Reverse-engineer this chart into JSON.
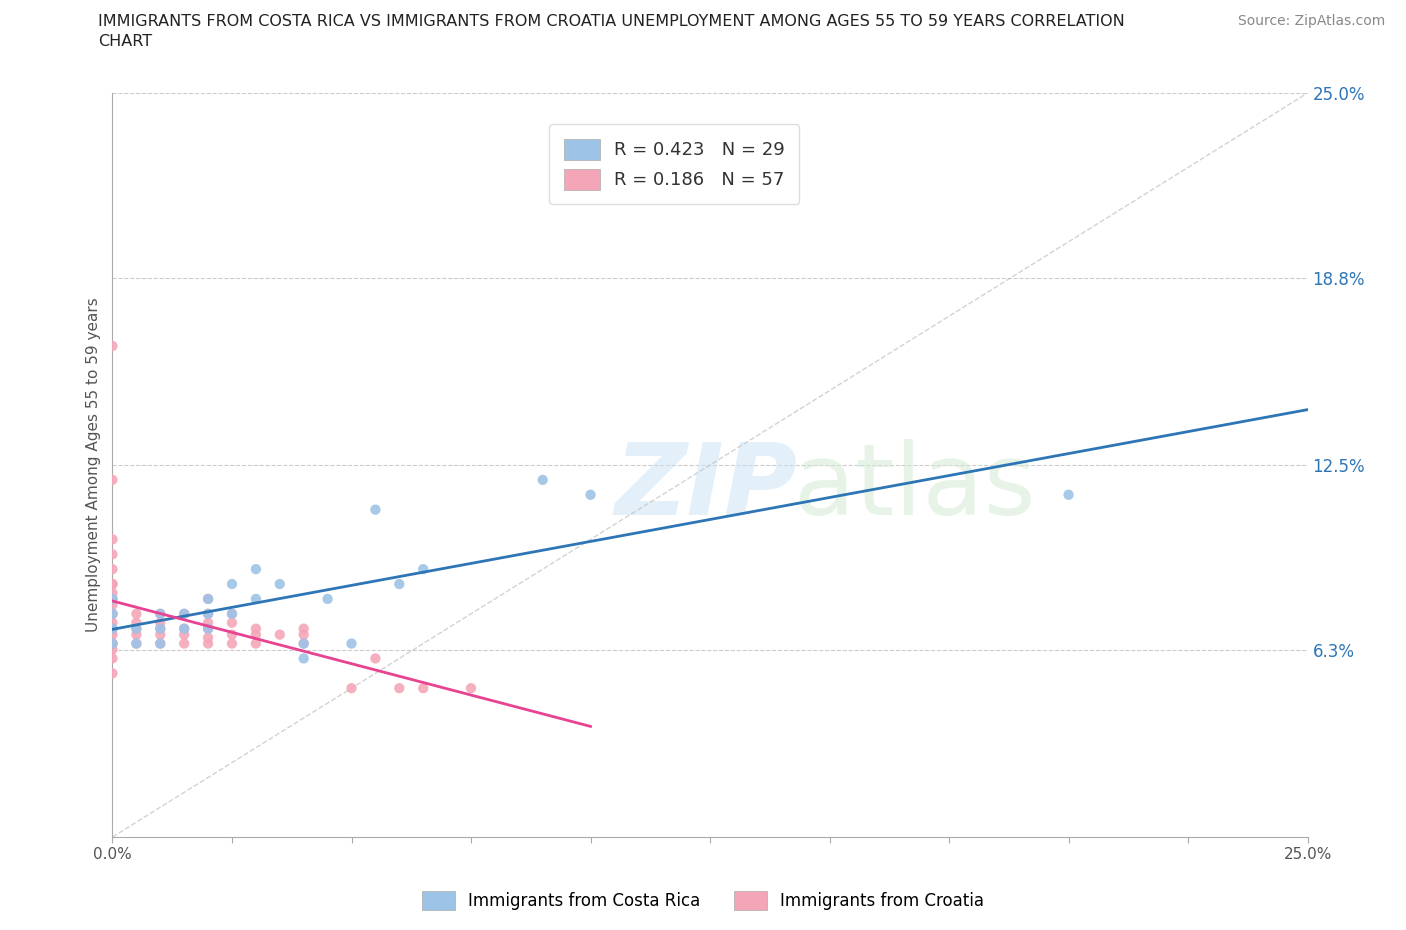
{
  "title_line1": "IMMIGRANTS FROM COSTA RICA VS IMMIGRANTS FROM CROATIA UNEMPLOYMENT AMONG AGES 55 TO 59 YEARS CORRELATION",
  "title_line2": "CHART",
  "source": "Source: ZipAtlas.com",
  "ylabel": "Unemployment Among Ages 55 to 59 years",
  "xlim": [
    0,
    0.25
  ],
  "ylim": [
    0,
    0.25
  ],
  "ytick_right_labels": [
    "6.3%",
    "12.5%",
    "18.8%",
    "25.0%"
  ],
  "ytick_right_values": [
    0.063,
    0.125,
    0.188,
    0.25
  ],
  "color_costa_rica": "#9dc3e6",
  "color_croatia": "#f4a6b8",
  "color_trendline_costa_rica": "#2e75b6",
  "color_trendline_croatia": "#e84393",
  "color_diagonal": "#c0c0c0",
  "R_costa_rica": 0.423,
  "N_costa_rica": 29,
  "R_croatia": 0.186,
  "N_croatia": 57,
  "legend_label_costa_rica": "Immigrants from Costa Rica",
  "legend_label_croatia": "Immigrants from Croatia",
  "costa_rica_x": [
    0.0,
    0.0,
    0.0,
    0.0,
    0.005,
    0.005,
    0.01,
    0.01,
    0.01,
    0.015,
    0.015,
    0.02,
    0.02,
    0.02,
    0.025,
    0.025,
    0.03,
    0.03,
    0.035,
    0.04,
    0.04,
    0.045,
    0.05,
    0.055,
    0.06,
    0.065,
    0.09,
    0.1,
    0.2
  ],
  "costa_rica_y": [
    0.065,
    0.07,
    0.075,
    0.08,
    0.065,
    0.07,
    0.065,
    0.07,
    0.075,
    0.07,
    0.075,
    0.07,
    0.075,
    0.08,
    0.075,
    0.085,
    0.08,
    0.09,
    0.085,
    0.065,
    0.06,
    0.08,
    0.065,
    0.11,
    0.085,
    0.09,
    0.12,
    0.115,
    0.115
  ],
  "croatia_x": [
    0.0,
    0.0,
    0.0,
    0.0,
    0.0,
    0.0,
    0.0,
    0.0,
    0.0,
    0.0,
    0.0,
    0.0,
    0.0,
    0.0,
    0.0,
    0.0,
    0.0,
    0.0,
    0.0,
    0.0,
    0.0,
    0.005,
    0.005,
    0.005,
    0.005,
    0.005,
    0.01,
    0.01,
    0.01,
    0.01,
    0.01,
    0.015,
    0.015,
    0.015,
    0.015,
    0.02,
    0.02,
    0.02,
    0.02,
    0.02,
    0.02,
    0.025,
    0.025,
    0.025,
    0.025,
    0.03,
    0.03,
    0.03,
    0.035,
    0.04,
    0.04,
    0.04,
    0.05,
    0.055,
    0.06,
    0.065,
    0.075
  ],
  "croatia_y": [
    0.055,
    0.06,
    0.063,
    0.065,
    0.065,
    0.068,
    0.07,
    0.07,
    0.072,
    0.075,
    0.075,
    0.078,
    0.08,
    0.082,
    0.085,
    0.085,
    0.09,
    0.095,
    0.1,
    0.12,
    0.165,
    0.065,
    0.068,
    0.07,
    0.072,
    0.075,
    0.065,
    0.068,
    0.07,
    0.072,
    0.075,
    0.065,
    0.068,
    0.07,
    0.075,
    0.065,
    0.067,
    0.07,
    0.072,
    0.075,
    0.08,
    0.065,
    0.068,
    0.072,
    0.075,
    0.065,
    0.068,
    0.07,
    0.068,
    0.065,
    0.068,
    0.07,
    0.05,
    0.06,
    0.05,
    0.05,
    0.05
  ],
  "trendline_cr_x0": 0.0,
  "trendline_cr_x1": 0.25,
  "trendline_hr_x0": 0.0,
  "trendline_hr_x1": 0.1
}
